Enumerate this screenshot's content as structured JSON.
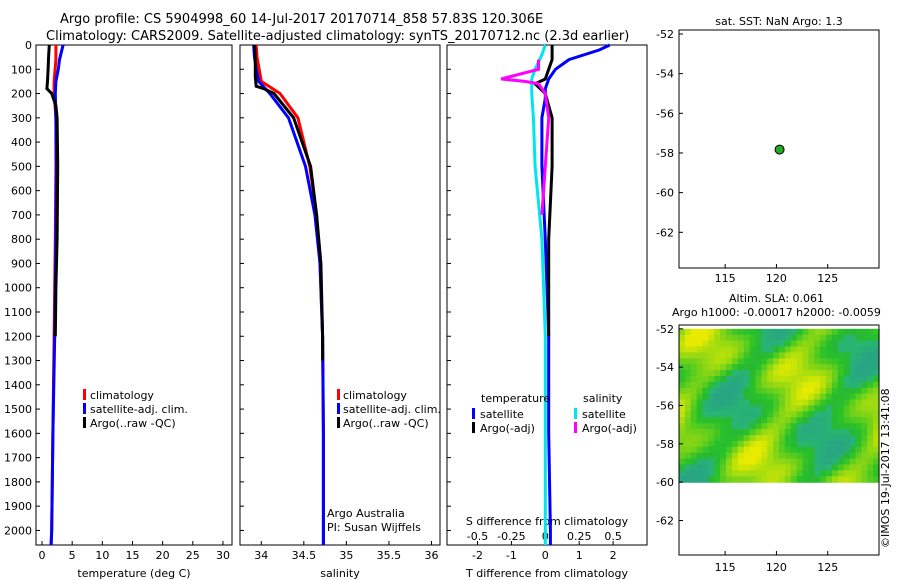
{
  "header": {
    "line1": "Argo profile: CS 5904998_60 14-Jul-2017 20170714_858 57.83S 120.306E",
    "line2": "Climatology: CARS2009. Satellite-adjusted climatology: synTS_20170712.nc (2.3d earlier)"
  },
  "credit": "©IMOS 19-Jul-2017 13:41:08",
  "colors": {
    "red": "#ff0000",
    "blue": "#0000ff",
    "black": "#000000",
    "cyan": "#00e5ee",
    "magenta": "#ff00ff",
    "grid": "#000000"
  },
  "chart_data": [
    {
      "id": "temperature",
      "type": "line",
      "xlabel": "temperature (deg C)",
      "xlim": [
        -1,
        31.5
      ],
      "xticks": [
        0,
        5,
        10,
        15,
        20,
        25,
        30
      ],
      "ylim": [
        2060,
        0
      ],
      "yticks": [
        0,
        100,
        200,
        300,
        400,
        500,
        600,
        700,
        800,
        900,
        1000,
        1100,
        1200,
        1300,
        1400,
        1500,
        1600,
        1700,
        1800,
        1900,
        2000
      ],
      "legend": [
        "climatology",
        "satellite-adj. clim.",
        "Argo(..raw -QC)"
      ],
      "series": [
        {
          "color": "red",
          "depth": [
            0,
            60,
            150,
            200,
            300,
            500,
            800,
            1200,
            1600,
            2000,
            2060
          ],
          "x": [
            2.3,
            2.3,
            2.0,
            2.0,
            2.3,
            2.3,
            2.2,
            2.0,
            1.8,
            1.6,
            1.5
          ]
        },
        {
          "color": "blue",
          "depth": [
            0,
            20,
            60,
            100,
            150,
            200,
            300,
            500,
            800,
            1200,
            1600,
            2000,
            2060
          ],
          "x": [
            3.5,
            3.3,
            2.9,
            2.7,
            2.3,
            2.2,
            2.3,
            2.4,
            2.3,
            2.1,
            1.8,
            1.6,
            1.5
          ]
        },
        {
          "color": "black",
          "depth": [
            0,
            40,
            100,
            150,
            180,
            200,
            250,
            300,
            500,
            800,
            1000,
            1200
          ],
          "x": [
            1.2,
            1.1,
            1.0,
            0.9,
            0.8,
            1.6,
            2.3,
            2.5,
            2.6,
            2.5,
            2.3,
            2.2
          ]
        }
      ]
    },
    {
      "id": "salinity",
      "type": "line",
      "xlabel": "salinity",
      "xlim": [
        33.75,
        36.1
      ],
      "xticks": [
        34,
        34.5,
        35,
        35.5,
        36
      ],
      "ylim": [
        2060,
        0
      ],
      "legend": [
        "climatology",
        "satellite-adj. clim.",
        "Argo(..raw -QC)"
      ],
      "annotation": [
        "Argo Australia",
        "PI: Susan Wijffels"
      ],
      "series": [
        {
          "color": "red",
          "depth": [
            0,
            50,
            150,
            200,
            300,
            500,
            700,
            900,
            1200,
            1600,
            2000,
            2060
          ],
          "x": [
            33.94,
            33.95,
            34.0,
            34.22,
            34.43,
            34.57,
            34.65,
            34.69,
            34.72,
            34.73,
            34.73,
            34.73
          ]
        },
        {
          "color": "blue",
          "depth": [
            0,
            50,
            100,
            150,
            200,
            300,
            500,
            700,
            900,
            1200,
            1600,
            2000,
            2060
          ],
          "x": [
            33.91,
            33.92,
            33.94,
            33.97,
            34.1,
            34.32,
            34.52,
            34.63,
            34.69,
            34.72,
            34.73,
            34.73,
            34.73
          ]
        },
        {
          "color": "black",
          "depth": [
            0,
            50,
            100,
            130,
            170,
            180,
            200,
            300,
            500,
            700,
            900,
            1200,
            1300
          ],
          "x": [
            33.92,
            33.93,
            33.93,
            33.93,
            33.94,
            34.03,
            34.15,
            34.38,
            34.58,
            34.65,
            34.7,
            34.72,
            34.72
          ]
        }
      ]
    },
    {
      "id": "difference",
      "type": "line",
      "xlabel": "T difference from climatology",
      "xlabel_top": "S difference from climatology",
      "xlim_T": [
        -2.9,
        3.0
      ],
      "xticks_T": [
        -2,
        -1,
        0,
        1,
        2
      ],
      "xticks_S": [
        -0.5,
        -0.25,
        0,
        0.25,
        0.5
      ],
      "xticklabels_S": [
        "-0.5",
        "-0.25",
        "0",
        "0.25",
        "0.5"
      ],
      "ylim": [
        2060,
        0
      ],
      "legend_left_title": "temperature",
      "legend_right_title": "salinity",
      "legend": [
        "satellite",
        "Argo(-adj)",
        "satellite",
        "Argo(-adj)"
      ],
      "series": [
        {
          "color": "blue",
          "depth": [
            0,
            20,
            60,
            80,
            100,
            140,
            180,
            220,
            300,
            500,
            800,
            1200,
            1600,
            2000,
            2060
          ],
          "x": [
            1.9,
            1.6,
            0.7,
            0.5,
            0.3,
            0.1,
            0.0,
            0.0,
            -0.1,
            -0.1,
            0.0,
            0.1,
            0.1,
            0.15,
            0.15
          ]
        },
        {
          "color": "black",
          "depth": [
            0,
            60,
            100,
            140,
            160,
            200,
            300,
            500,
            800,
            1000,
            1200
          ],
          "x": [
            0.2,
            0.2,
            0.1,
            0.0,
            -0.3,
            0.0,
            0.2,
            0.2,
            0.1,
            0.1,
            0.1
          ]
        },
        {
          "color": "cyan",
          "depth": [
            0,
            40,
            100,
            140,
            200,
            300,
            500,
            800,
            1200,
            1600,
            2000,
            2060
          ],
          "x": [
            0.0,
            -0.1,
            -0.3,
            -0.4,
            -0.4,
            -0.35,
            -0.3,
            -0.1,
            0.0,
            0.0,
            0.0,
            0.0
          ]
        },
        {
          "color": "magenta",
          "depth": [
            60,
            100,
            140,
            150,
            160,
            200,
            300,
            500,
            700
          ],
          "x": [
            -0.2,
            -0.2,
            -1.3,
            -0.6,
            -0.2,
            0.0,
            0.1,
            0.0,
            -0.1
          ]
        }
      ]
    },
    {
      "id": "sst_map",
      "type": "scatter",
      "title": "sat. SST: NaN Argo: 1.3",
      "xlim": [
        110.5,
        130
      ],
      "ylim": [
        -63.8,
        -51.8
      ],
      "xticks": [
        115,
        120,
        125
      ],
      "yticks": [
        -52,
        -54,
        -56,
        -58,
        -60,
        -62
      ],
      "points": [
        {
          "lon": 120.306,
          "lat": -57.83
        }
      ]
    },
    {
      "id": "sla_map",
      "type": "heatmap",
      "title": "Altim. SLA: 0.061",
      "subtitle": "Argo h1000: -0.00017 h2000: -0.0059",
      "xlim": [
        110.5,
        130
      ],
      "ylim": [
        -63.8,
        -51.8
      ],
      "xticks": [
        115,
        120,
        125
      ],
      "yticks": [
        -52,
        -54,
        -56,
        -58,
        -60,
        -62
      ],
      "data_lat_range": [
        -60,
        -52
      ]
    }
  ]
}
